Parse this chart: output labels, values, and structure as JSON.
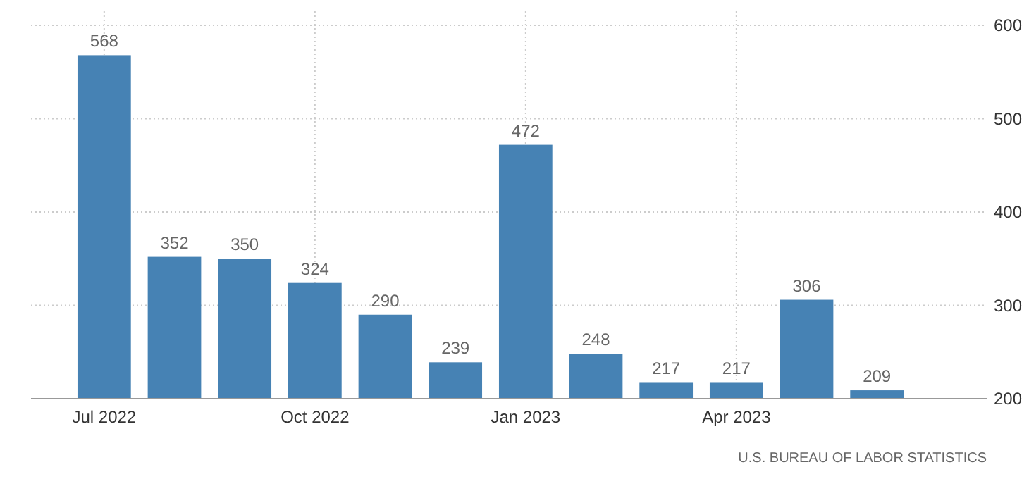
{
  "chart_data": {
    "type": "bar",
    "categories": [
      "Jul 2022",
      null,
      null,
      "Oct 2022",
      null,
      null,
      "Jan 2023",
      null,
      null,
      "Apr 2023",
      null,
      null
    ],
    "values": [
      568,
      352,
      350,
      324,
      290,
      239,
      472,
      248,
      217,
      217,
      306,
      209
    ],
    "color": "#4682b4",
    "ylim": [
      200,
      600
    ],
    "yticks": [
      200,
      300,
      400,
      500,
      600
    ],
    "grid": true,
    "data_labels": true,
    "annotations": [
      "U.S. BUREAU OF LABOR STATISTICS"
    ]
  }
}
